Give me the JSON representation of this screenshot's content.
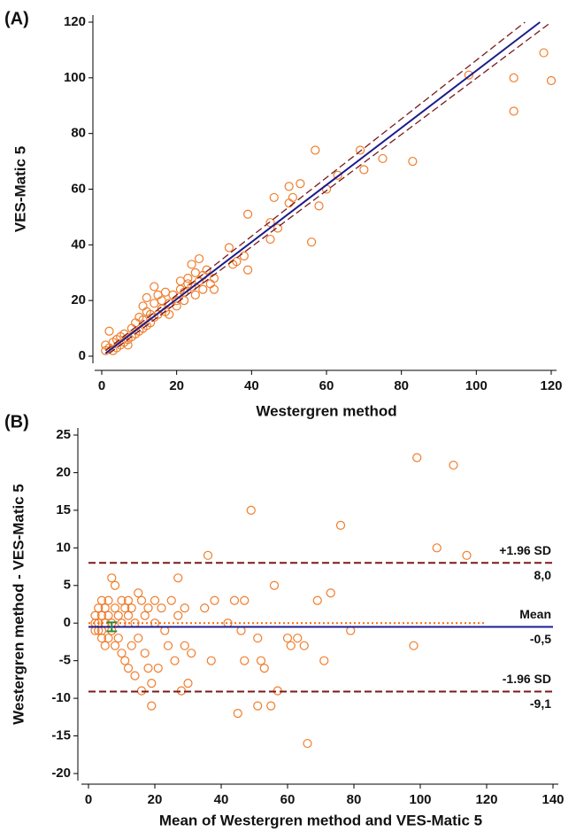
{
  "chart_data": [
    {
      "type": "scatter",
      "panel_label": "(A)",
      "xlabel": "Westergren method",
      "ylabel": "VES-Matic 5",
      "xlim": [
        0,
        120
      ],
      "ylim": [
        0,
        120
      ],
      "xticks": [
        0,
        20,
        40,
        60,
        80,
        100,
        120
      ],
      "yticks": [
        0,
        20,
        40,
        60,
        80,
        100,
        120
      ],
      "color": "#f07d2c",
      "x": [
        1,
        1,
        2,
        2,
        3,
        3,
        4,
        4,
        5,
        5,
        6,
        6,
        7,
        7,
        8,
        8,
        9,
        9,
        10,
        10,
        11,
        11,
        11,
        12,
        12,
        12,
        13,
        13,
        14,
        14,
        14,
        15,
        15,
        16,
        16,
        17,
        17,
        18,
        18,
        19,
        20,
        20,
        21,
        21,
        22,
        22,
        23,
        23,
        24,
        24,
        25,
        25,
        26,
        26,
        27,
        27,
        28,
        29,
        30,
        30,
        34,
        35,
        36,
        38,
        39,
        39,
        45,
        45,
        46,
        47,
        50,
        50,
        51,
        53,
        56,
        57,
        58,
        60,
        63,
        69,
        70,
        75,
        83,
        98,
        110,
        110,
        118,
        120
      ],
      "values": [
        2,
        4,
        3,
        9,
        2,
        5,
        3,
        6,
        4,
        7,
        5,
        8,
        6,
        4,
        7,
        10,
        8,
        12,
        9,
        14,
        10,
        13,
        18,
        11,
        16,
        21,
        12,
        15,
        14,
        19,
        25,
        15,
        22,
        17,
        20,
        16,
        23,
        19,
        15,
        22,
        20,
        18,
        24,
        27,
        23,
        20,
        26,
        28,
        25,
        33,
        30,
        22,
        27,
        35,
        29,
        24,
        31,
        26,
        28,
        24,
        39,
        33,
        34,
        36,
        31,
        51,
        42,
        48,
        57,
        46,
        61,
        55,
        57,
        62,
        41,
        74,
        54,
        60,
        65,
        74,
        67,
        71,
        70,
        101,
        100,
        88,
        109,
        99
      ],
      "lines": [
        {
          "x": [
            1,
            117
          ],
          "y": [
            1,
            120
          ],
          "color": "#1c1c8c",
          "dash": "solid"
        },
        {
          "x": [
            1,
            113
          ],
          "y": [
            2,
            120
          ],
          "color": "#7a1a1a",
          "dash": "dashed"
        },
        {
          "x": [
            2,
            120
          ],
          "y": [
            1,
            120
          ],
          "color": "#7a1a1a",
          "dash": "dashed"
        }
      ]
    },
    {
      "type": "scatter",
      "panel_label": "(B)",
      "xlabel": "Mean of Westergren method and VES-Matic 5",
      "ylabel": "Westergren method - VES-Matic 5",
      "xlim": [
        0,
        140
      ],
      "ylim": [
        -20,
        25
      ],
      "xticks": [
        0,
        20,
        40,
        60,
        80,
        100,
        120,
        140
      ],
      "yticks": [
        -20,
        -15,
        -10,
        -5,
        0,
        5,
        10,
        15,
        20,
        25
      ],
      "color": "#f07d2c",
      "x": [
        2,
        2,
        2,
        3,
        3,
        3,
        4,
        4,
        4,
        4,
        5,
        5,
        5,
        6,
        6,
        6,
        7,
        7,
        7,
        8,
        8,
        8,
        9,
        9,
        10,
        10,
        10,
        11,
        11,
        12,
        12,
        12,
        13,
        13,
        14,
        14,
        15,
        15,
        16,
        16,
        17,
        17,
        18,
        18,
        19,
        19,
        20,
        20,
        21,
        22,
        23,
        24,
        25,
        26,
        27,
        27,
        28,
        29,
        29,
        30,
        31,
        35,
        36,
        37,
        38,
        42,
        44,
        45,
        46,
        47,
        47,
        49,
        51,
        51,
        52,
        53,
        55,
        56,
        57,
        60,
        61,
        63,
        65,
        66,
        69,
        71,
        73,
        76,
        79,
        98,
        99,
        105,
        110,
        114
      ],
      "values": [
        0,
        1,
        -1,
        2,
        -1,
        0,
        1,
        -1,
        3,
        -2,
        0,
        2,
        -3,
        1,
        -2,
        3,
        6,
        0,
        -1,
        5,
        -3,
        2,
        1,
        -2,
        3,
        -4,
        0,
        2,
        -5,
        1,
        -6,
        3,
        -3,
        2,
        -7,
        0,
        4,
        -2,
        3,
        -9,
        -4,
        1,
        -6,
        2,
        -11,
        -8,
        0,
        3,
        -6,
        2,
        -1,
        -3,
        3,
        -5,
        6,
        1,
        -9,
        2,
        -3,
        -8,
        -4,
        2,
        9,
        -5,
        3,
        0,
        3,
        -12,
        -1,
        -5,
        3,
        15,
        -2,
        -11,
        -5,
        -6,
        -11,
        5,
        -9,
        -2,
        -3,
        -2,
        -3,
        -16,
        3,
        -5,
        4,
        13,
        -1,
        -3,
        22,
        10,
        21,
        9
      ],
      "hlines": [
        {
          "y": 0,
          "x": [
            0,
            120
          ],
          "color": "#ff6a00",
          "dash": "dotted"
        },
        {
          "y": 8.0,
          "x": [
            0,
            140
          ],
          "color": "#7a1a1a",
          "dash": "dashed",
          "label": "+1.96 SD",
          "value_label": "8,0"
        },
        {
          "y": -0.5,
          "x": [
            0,
            140
          ],
          "color": "#1c1c8c",
          "dash": "solid",
          "label": "Mean",
          "value_label": "-0,5"
        },
        {
          "y": -9.1,
          "x": [
            0,
            140
          ],
          "color": "#7a1a1a",
          "dash": "dashed",
          "label": "-1.96 SD",
          "value_label": "-9,1"
        }
      ],
      "mean_ci": {
        "x": 7,
        "value": -0.5,
        "error": 0.6,
        "color": "#2e8b3a"
      }
    }
  ]
}
